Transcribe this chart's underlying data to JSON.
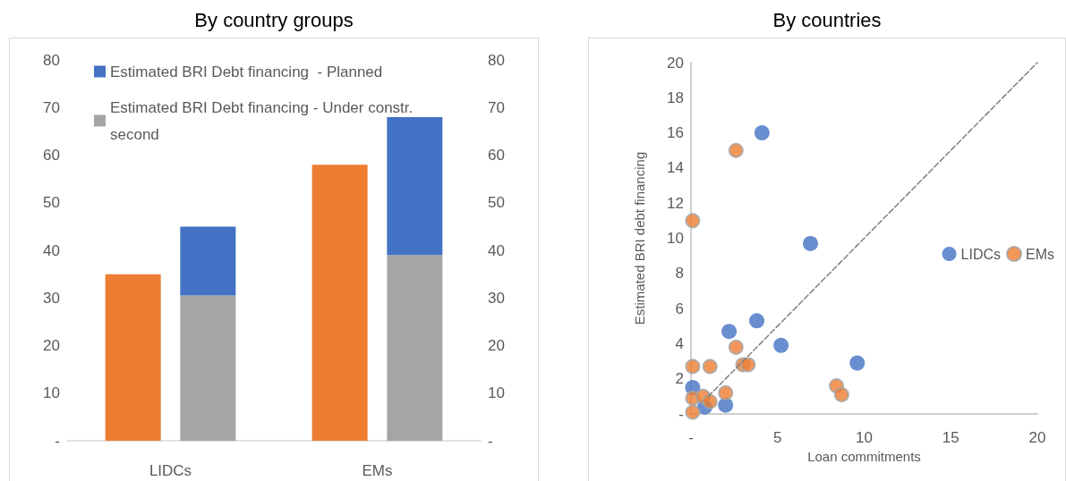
{
  "chart_data": [
    {
      "type": "bar",
      "title": "By country groups",
      "categories": [
        "LIDCs",
        "EMs"
      ],
      "stacked": true,
      "legend": "top",
      "grid": false,
      "ylim": [
        0,
        80
      ],
      "yticks": [
        {
          "value": 0,
          "label": "-"
        },
        10,
        20,
        30,
        40,
        50,
        60,
        70,
        80
      ],
      "y2lim": [
        0,
        80
      ],
      "y2ticks": [
        {
          "value": 0,
          "label": "-"
        },
        10,
        20,
        30,
        40,
        50,
        60,
        70,
        80
      ],
      "series": [
        {
          "color": "#ed7d31",
          "values": [
            35,
            58
          ],
          "axis": "y2"
        },
        {
          "name": "Estimated BRI Debt financing - Under constr. second",
          "color": "#a5a5a5",
          "values": [
            30.5,
            39
          ]
        },
        {
          "name": "Estimated BRI Debt financing  - Planned",
          "color": "#4472c4",
          "values": [
            14.5,
            29
          ]
        }
      ]
    },
    {
      "type": "scatter",
      "title": "By countries",
      "xlabel": "Loan commitments",
      "ylabel": "Estimated BRI debt financing",
      "legend": "right",
      "grid": false,
      "marker": "circle",
      "xlim": [
        0,
        20
      ],
      "xticks": [
        {
          "value": 0,
          "label": "-"
        },
        5,
        10,
        15,
        20
      ],
      "ylim": [
        0,
        20
      ],
      "yticks": [
        {
          "value": 0,
          "label": "-"
        },
        2,
        4,
        6,
        8,
        10,
        12,
        14,
        16,
        18,
        20
      ],
      "series": [
        {
          "name": "LIDCs",
          "color": "#4472c4",
          "x": [
            4.1,
            6.9,
            3.8,
            2.2,
            5.2,
            9.6,
            0.1,
            0.8,
            2.0
          ],
          "values": [
            16,
            9.7,
            5.3,
            4.7,
            3.9,
            2.9,
            1.5,
            0.4,
            0.5
          ]
        },
        {
          "name": "EMs",
          "color": "#ed7d31",
          "x": [
            2.6,
            0.1,
            2.6,
            3.0,
            3.3,
            0.1,
            1.1,
            8.4,
            8.7,
            0.1,
            0.7,
            1.1,
            2.0,
            0.1
          ],
          "values": [
            15,
            11,
            3.8,
            2.8,
            2.8,
            2.7,
            2.7,
            1.6,
            1.1,
            0.9,
            1.0,
            0.7,
            1.2,
            0.1
          ]
        },
        {
          "type": "line",
          "color": "#7f7f7f",
          "line_style": "dashed",
          "marker": "none",
          "x": [
            1,
            20
          ],
          "values": [
            1,
            20
          ]
        }
      ]
    }
  ]
}
